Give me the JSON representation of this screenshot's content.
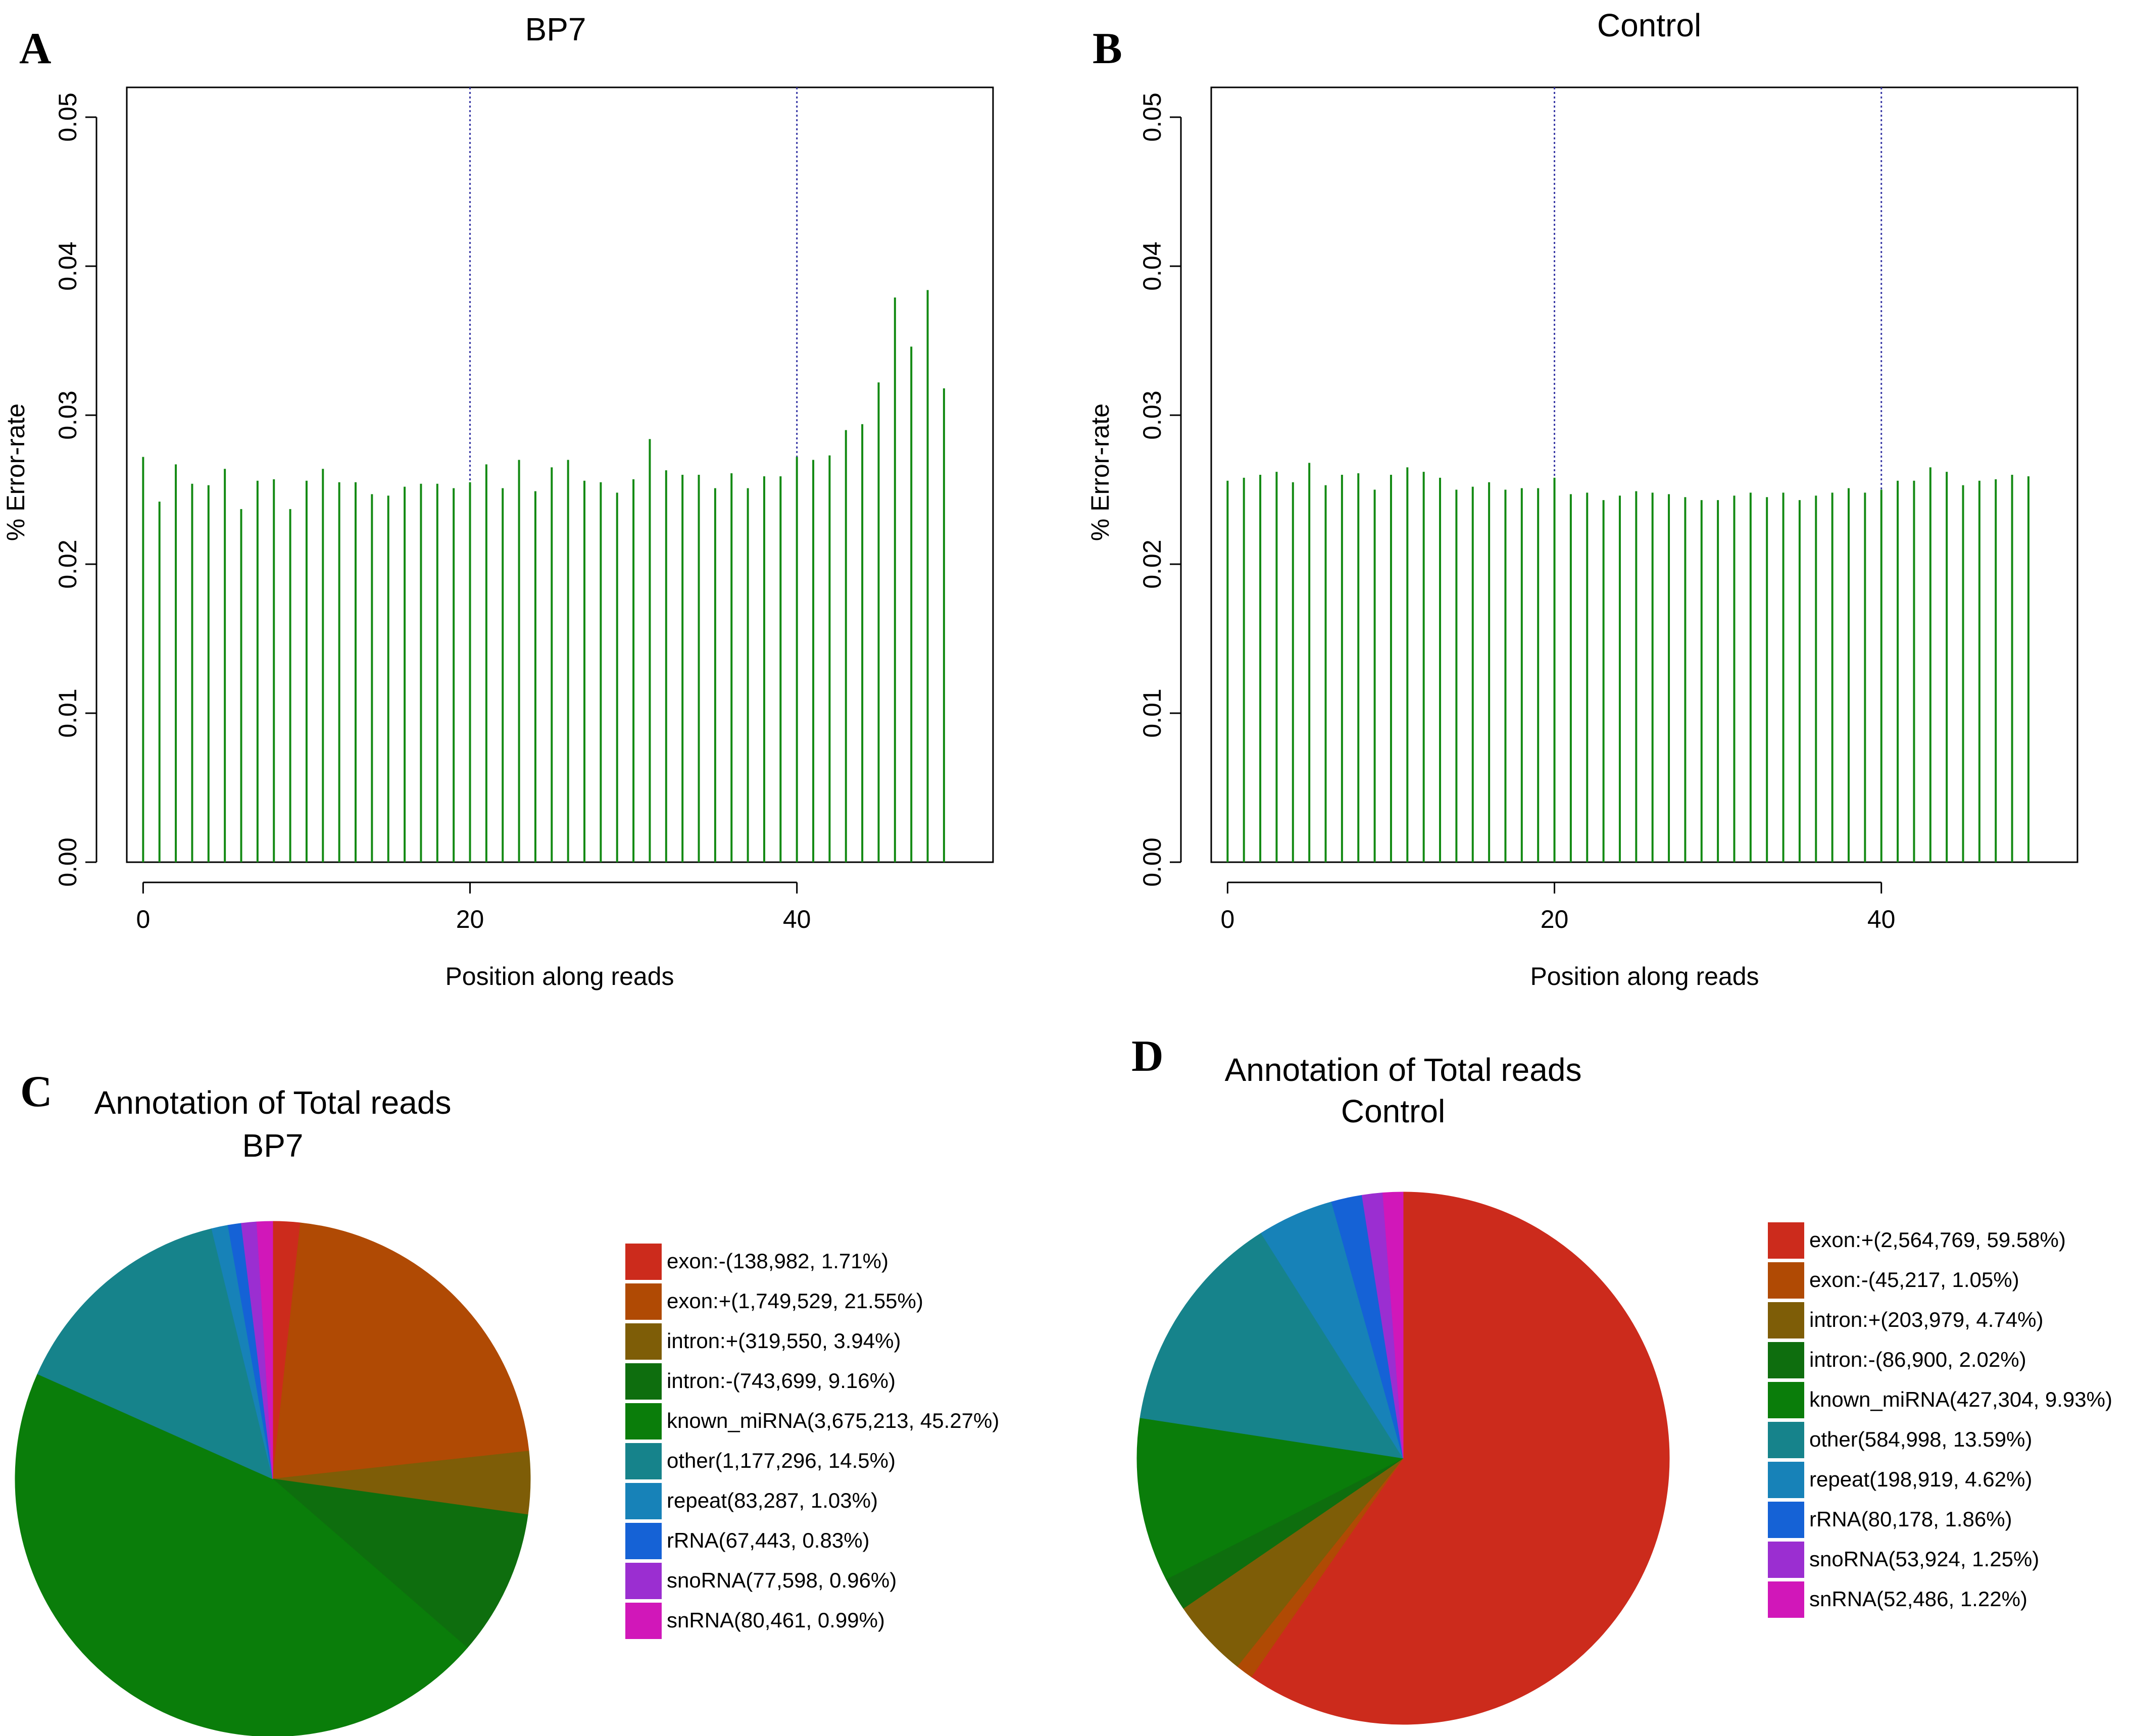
{
  "colors": {
    "bar": "#138a13",
    "vline": "#3a3aa6",
    "axis": "#000000"
  },
  "panels": {
    "A": "A",
    "B": "B",
    "C": "C",
    "D": "D"
  },
  "chart_data": [
    {
      "id": "A",
      "type": "bar",
      "title": "BP7",
      "xlabel": "Position along reads",
      "ylabel": "% Error-rate",
      "xlim": [
        -1,
        52
      ],
      "ylim": [
        0,
        0.052
      ],
      "x_ticks": [
        "0",
        "20",
        "40"
      ],
      "y_ticks": [
        "0.00",
        "0.01",
        "0.02",
        "0.03",
        "0.04",
        "0.05"
      ],
      "vlines": [
        20,
        40
      ],
      "x": [
        0,
        1,
        2,
        3,
        4,
        5,
        6,
        7,
        8,
        9,
        10,
        11,
        12,
        13,
        14,
        15,
        16,
        17,
        18,
        19,
        20,
        21,
        22,
        23,
        24,
        25,
        26,
        27,
        28,
        29,
        30,
        31,
        32,
        33,
        34,
        35,
        36,
        37,
        38,
        39,
        40,
        41,
        42,
        43,
        44,
        45,
        46,
        47,
        48,
        49
      ],
      "values": [
        0.0272,
        0.0242,
        0.0267,
        0.0254,
        0.0253,
        0.0264,
        0.0237,
        0.0256,
        0.0257,
        0.0237,
        0.0256,
        0.0264,
        0.0255,
        0.0255,
        0.0247,
        0.0246,
        0.0252,
        0.0254,
        0.0254,
        0.0251,
        0.0255,
        0.0267,
        0.0251,
        0.027,
        0.0249,
        0.0265,
        0.027,
        0.0256,
        0.0255,
        0.0248,
        0.0257,
        0.0284,
        0.0263,
        0.026,
        0.026,
        0.0251,
        0.0261,
        0.0251,
        0.0259,
        0.0259,
        0.0272,
        0.027,
        0.0273,
        0.029,
        0.0294,
        0.0322,
        0.0379,
        0.0346,
        0.0384,
        0.0318
      ]
    },
    {
      "id": "B",
      "type": "bar",
      "title": "Control",
      "xlabel": "Position along reads",
      "ylabel": "% Error-rate",
      "xlim": [
        -1,
        52
      ],
      "ylim": [
        0,
        0.052
      ],
      "x_ticks": [
        "0",
        "20",
        "40"
      ],
      "y_ticks": [
        "0.00",
        "0.01",
        "0.02",
        "0.03",
        "0.04",
        "0.05"
      ],
      "vlines": [
        20,
        40
      ],
      "x": [
        0,
        1,
        2,
        3,
        4,
        5,
        6,
        7,
        8,
        9,
        10,
        11,
        12,
        13,
        14,
        15,
        16,
        17,
        18,
        19,
        20,
        21,
        22,
        23,
        24,
        25,
        26,
        27,
        28,
        29,
        30,
        31,
        32,
        33,
        34,
        35,
        36,
        37,
        38,
        39,
        40,
        41,
        42,
        43,
        44,
        45,
        46,
        47,
        48,
        49
      ],
      "values": [
        0.0256,
        0.0258,
        0.026,
        0.0262,
        0.0255,
        0.0268,
        0.0253,
        0.026,
        0.0261,
        0.025,
        0.026,
        0.0265,
        0.0262,
        0.0258,
        0.025,
        0.0252,
        0.0255,
        0.025,
        0.0251,
        0.0251,
        0.0258,
        0.0247,
        0.0248,
        0.0243,
        0.0246,
        0.0249,
        0.0248,
        0.0247,
        0.0245,
        0.0243,
        0.0243,
        0.0246,
        0.0248,
        0.0245,
        0.0248,
        0.0243,
        0.0246,
        0.0248,
        0.0251,
        0.0248,
        0.025,
        0.0256,
        0.0256,
        0.0265,
        0.0262,
        0.0253,
        0.0256,
        0.0257,
        0.026,
        0.0259
      ]
    },
    {
      "id": "C",
      "type": "pie",
      "title_line1": "Annotation of Total reads",
      "title_line2": "BP7",
      "start_angle_deg": 90,
      "direction": "clockwise",
      "slices": [
        {
          "label": "exon:-(138,982, 1.71%)",
          "value": 1.71,
          "color": "#cc2b1c"
        },
        {
          "label": "exon:+(1,749,529, 21.55%)",
          "value": 21.55,
          "color": "#b04a04"
        },
        {
          "label": "intron:+(319,550, 3.94%)",
          "value": 3.94,
          "color": "#7e5d07"
        },
        {
          "label": "intron:-(743,699, 9.16%)",
          "value": 9.16,
          "color": "#0e6e0e"
        },
        {
          "label": "known_miRNA(3,675,213, 45.27%)",
          "value": 45.27,
          "color": "#0a7d0a"
        },
        {
          "label": "other(1,177,296, 14.5%)",
          "value": 14.5,
          "color": "#16838b"
        },
        {
          "label": "repeat(83,287, 1.03%)",
          "value": 1.03,
          "color": "#1782b8"
        },
        {
          "label": "rRNA(67,443, 0.83%)",
          "value": 0.83,
          "color": "#1562d6"
        },
        {
          "label": "snoRNA(77,598, 0.96%)",
          "value": 0.96,
          "color": "#9b2ed1"
        },
        {
          "label": "snRNA(80,461, 0.99%)",
          "value": 0.99,
          "color": "#d117b9"
        }
      ]
    },
    {
      "id": "D",
      "type": "pie",
      "title_line1": "Annotation of Total reads",
      "title_line2": "Control",
      "start_angle_deg": 90,
      "direction": "clockwise",
      "slices": [
        {
          "label": "exon:+(2,564,769, 59.58%)",
          "value": 59.58,
          "color": "#cc2b1c"
        },
        {
          "label": "exon:-(45,217, 1.05%)",
          "value": 1.05,
          "color": "#b04a04"
        },
        {
          "label": "intron:+(203,979, 4.74%)",
          "value": 4.74,
          "color": "#7e5d07"
        },
        {
          "label": "intron:-(86,900, 2.02%)",
          "value": 2.02,
          "color": "#0e6e0e"
        },
        {
          "label": "known_miRNA(427,304, 9.93%)",
          "value": 9.93,
          "color": "#0a7d0a"
        },
        {
          "label": "other(584,998, 13.59%)",
          "value": 13.59,
          "color": "#16838b"
        },
        {
          "label": "repeat(198,919, 4.62%)",
          "value": 4.62,
          "color": "#1782b8"
        },
        {
          "label": "rRNA(80,178, 1.86%)",
          "value": 1.86,
          "color": "#1562d6"
        },
        {
          "label": "snoRNA(53,924, 1.25%)",
          "value": 1.25,
          "color": "#9b2ed1"
        },
        {
          "label": "snRNA(52,486, 1.22%)",
          "value": 1.22,
          "color": "#d117b9"
        }
      ]
    }
  ]
}
